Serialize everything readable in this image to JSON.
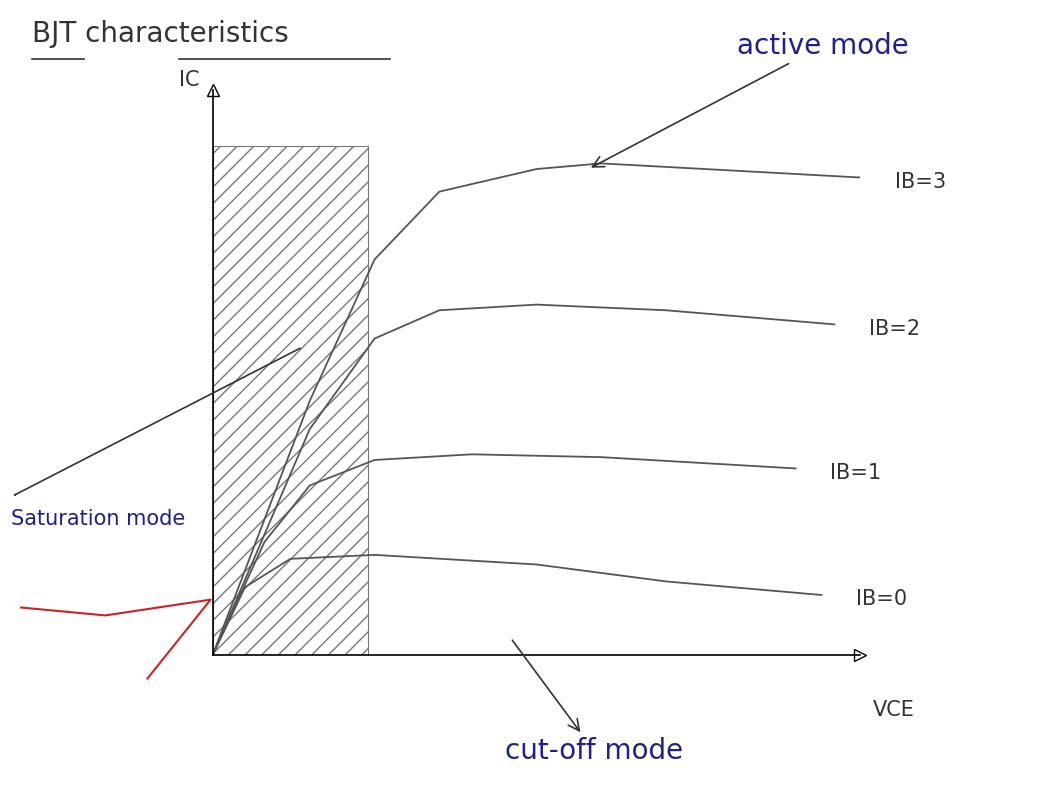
{
  "chart_data": {
    "type": "line",
    "title": "BJT characteristics",
    "x_label": "VCE",
    "y_label": "IC",
    "xlim": [
      0,
      10
    ],
    "ylim": [
      0,
      10
    ],
    "xticks": [],
    "yticks": [],
    "tick_labels": false,
    "grid": false,
    "shaded_x": [
      0,
      2.4
    ],
    "annotations": {
      "active": "active mode",
      "saturation": "Saturation mode",
      "cutoff": "cut-off mode"
    },
    "series": [
      {
        "name": "IB=3",
        "color": "#555555",
        "x": [
          0,
          1.5,
          2.5,
          3.5,
          5,
          6,
          10
        ],
        "values": [
          0,
          4.5,
          7.0,
          8.2,
          8.6,
          8.7,
          8.45
        ]
      },
      {
        "name": "IB=2",
        "color": "#555555",
        "x": [
          0,
          1.5,
          2.5,
          3.5,
          5,
          7,
          9.6
        ],
        "values": [
          0,
          4.0,
          5.6,
          6.1,
          6.2,
          6.1,
          5.85
        ]
      },
      {
        "name": "IB=1",
        "color": "#555555",
        "x": [
          0,
          0.8,
          1.5,
          2.5,
          4,
          6,
          9.0
        ],
        "values": [
          0,
          2.0,
          3.0,
          3.45,
          3.55,
          3.5,
          3.3
        ]
      },
      {
        "name": "IB=0",
        "color": "#555555",
        "x": [
          0,
          0.5,
          1.2,
          2.5,
          5,
          7,
          9.4
        ],
        "values": [
          0,
          1.2,
          1.7,
          1.77,
          1.6,
          1.3,
          1.06
        ]
      }
    ]
  }
}
